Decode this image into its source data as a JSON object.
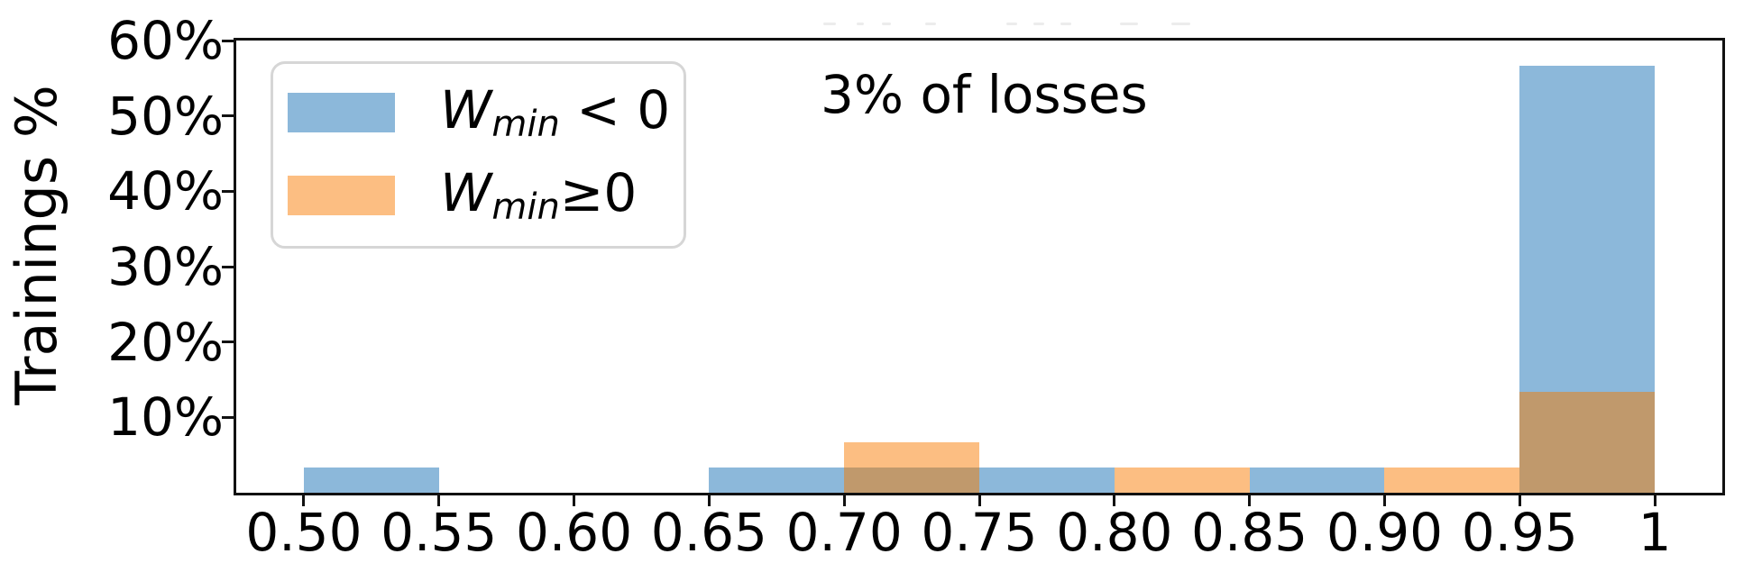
{
  "chart_data": {
    "type": "bar",
    "subtype": "overlaid-histogram",
    "title": "",
    "xlabel": "",
    "ylabel": "Trainings %",
    "xlim": [
      0.475,
      1.025
    ],
    "ylim": [
      0,
      60
    ],
    "grid": false,
    "legend_position": "upper left",
    "bin_edges": [
      0.5,
      0.55,
      0.6,
      0.65,
      0.7,
      0.75,
      0.8,
      0.85,
      0.9,
      0.95,
      1.0
    ],
    "series": [
      {
        "name": "Wmin < 0",
        "color": "#8cb8da",
        "values": [
          3.33,
          0,
          0,
          3.33,
          3.33,
          3.33,
          0,
          3.33,
          0,
          56.67
        ]
      },
      {
        "name": "Wmin >= 0",
        "color": "#fcbe82",
        "values": [
          0,
          0,
          0,
          0,
          6.67,
          0,
          3.33,
          0,
          3.33,
          13.33
        ]
      }
    ],
    "overlap_color": "#c0996c",
    "x_ticks": [
      {
        "v": 0.5,
        "label": "0.50"
      },
      {
        "v": 0.55,
        "label": "0.55"
      },
      {
        "v": 0.6,
        "label": "0.60"
      },
      {
        "v": 0.65,
        "label": "0.65"
      },
      {
        "v": 0.7,
        "label": "0.70"
      },
      {
        "v": 0.75,
        "label": "0.75"
      },
      {
        "v": 0.8,
        "label": "0.80"
      },
      {
        "v": 0.85,
        "label": "0.85"
      },
      {
        "v": 0.9,
        "label": "0.90"
      },
      {
        "v": 1.0,
        "label": "1"
      }
    ],
    "x_tick_90": {
      "v": 0.95,
      "label": "0.95"
    },
    "y_ticks": [
      {
        "v": 10,
        "label": "10%"
      },
      {
        "v": 20,
        "label": "20%"
      },
      {
        "v": 30,
        "label": "30%"
      },
      {
        "v": 40,
        "label": "40%"
      },
      {
        "v": 50,
        "label": "50%"
      },
      {
        "v": 60,
        "label": "60%"
      }
    ],
    "annotation": "3% of losses",
    "legend": {
      "entries": [
        {
          "symbol": "W",
          "subscript": "min",
          "relation": " < 0",
          "color": "#8cb8da"
        },
        {
          "symbol": "W",
          "subscript": "min",
          "relation": "≥0",
          "color": "#fcbe82"
        }
      ]
    }
  },
  "artifacts": {
    "cropped_title_fragments": [
      [
        913,
        927
      ],
      [
        950,
        958
      ],
      [
        978,
        988
      ],
      [
        1026,
        1038
      ],
      [
        1116,
        1128
      ],
      [
        1146,
        1158
      ],
      [
        1176,
        1188
      ],
      [
        1242,
        1262
      ],
      [
        1299,
        1320
      ]
    ]
  }
}
